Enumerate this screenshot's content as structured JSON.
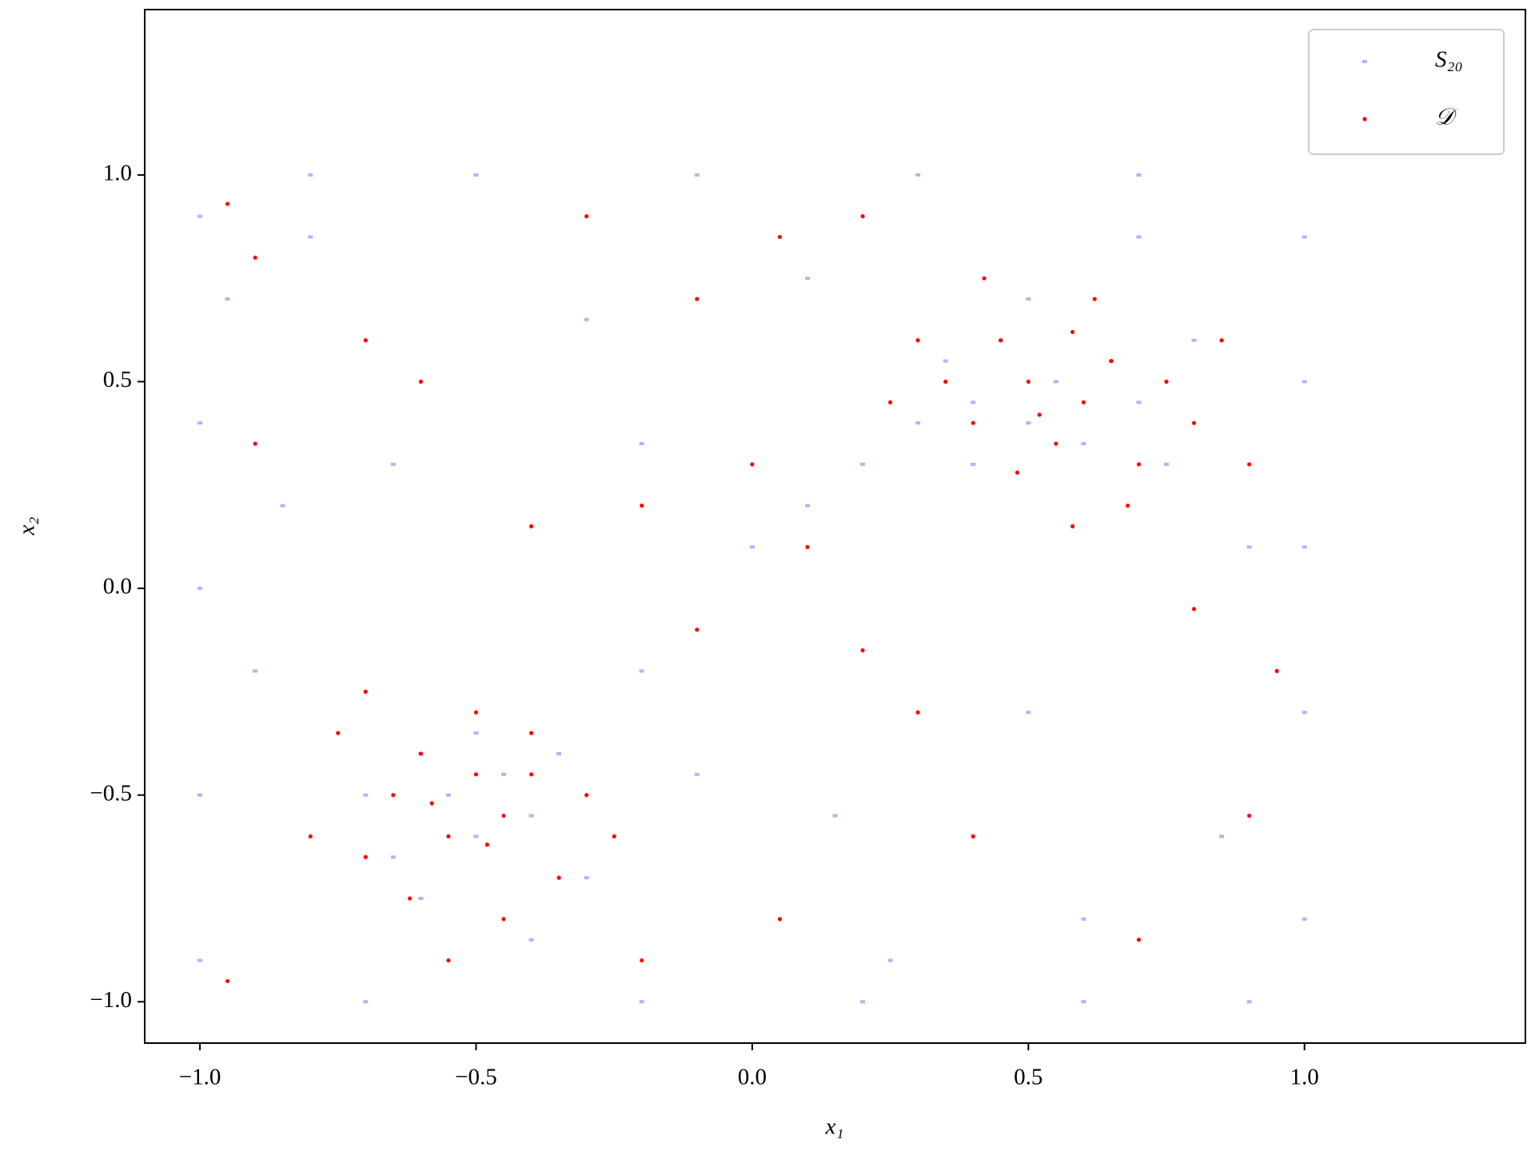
{
  "chart_data": {
    "type": "scatter",
    "xlabel": "x₁",
    "ylabel": "x₂",
    "xlim": [
      -1.1,
      1.4
    ],
    "ylim": [
      -1.1,
      1.4
    ],
    "xticks": [
      {
        "value": -1.0,
        "label": "−1.0"
      },
      {
        "value": -0.5,
        "label": "−0.5"
      },
      {
        "value": 0.0,
        "label": "0.0"
      },
      {
        "value": 0.5,
        "label": "0.5"
      },
      {
        "value": 1.0,
        "label": "1.0"
      }
    ],
    "yticks": [
      {
        "value": -1.0,
        "label": "−1.0"
      },
      {
        "value": -0.5,
        "label": "−0.5"
      },
      {
        "value": 0.0,
        "label": "0.0"
      },
      {
        "value": 0.5,
        "label": "0.5"
      },
      {
        "value": 1.0,
        "label": "1.0"
      }
    ],
    "legend": "upper right",
    "series": [
      {
        "name": "S₂₀",
        "color": "#0000ff",
        "x": [
          -1,
          -1,
          -1,
          -1,
          -1,
          1,
          1,
          1,
          1,
          1,
          -0.8,
          -0.5,
          -0.1,
          0.3,
          0.7,
          -0.7,
          -0.2,
          0.2,
          0.6,
          0.9,
          -0.95,
          -0.85,
          -0.6,
          -0.55,
          -0.5,
          -0.45,
          -0.4,
          -0.65,
          -0.35,
          -0.3,
          -0.5,
          -0.6,
          -0.7,
          -0.4,
          -0.2,
          0.0,
          0.1,
          0.2,
          0.35,
          0.4,
          0.45,
          0.5,
          0.55,
          0.6,
          0.65,
          0.7,
          0.75,
          0.5,
          0.4,
          0.8,
          0.3,
          -0.8,
          -0.3,
          0.1,
          0.5,
          0.85,
          -0.9,
          -0.2,
          0.15,
          0.6,
          0.9,
          -0.65,
          -0.1,
          0.25,
          0.7
        ],
        "y": [
          -0.9,
          -0.5,
          0.0,
          0.4,
          0.9,
          -0.8,
          -0.3,
          0.1,
          0.5,
          0.85,
          1,
          1,
          1,
          1,
          1,
          -1,
          -1,
          -1,
          -1,
          -1,
          0.7,
          0.2,
          -0.4,
          -0.5,
          -0.6,
          -0.45,
          -0.55,
          -0.65,
          -0.4,
          -0.7,
          -0.35,
          -0.75,
          -0.5,
          -0.85,
          -0.2,
          0.1,
          0.2,
          0.3,
          0.55,
          0.45,
          0.6,
          0.4,
          0.5,
          0.35,
          0.55,
          0.45,
          0.3,
          0.7,
          0.3,
          0.6,
          0.4,
          0.85,
          0.65,
          0.75,
          -0.3,
          -0.6,
          -0.2,
          0.35,
          -0.55,
          -0.8,
          0.1,
          0.3,
          -0.45,
          -0.9,
          0.85
        ]
      },
      {
        "name": "𝒟",
        "color": "#ff0000",
        "x": [
          -0.6,
          -0.5,
          -0.45,
          -0.55,
          -0.65,
          -0.4,
          -0.7,
          -0.35,
          -0.5,
          -0.62,
          -0.45,
          -0.3,
          -0.75,
          -0.58,
          -0.48,
          -0.4,
          -0.8,
          -0.25,
          -0.55,
          -0.7,
          0.5,
          0.6,
          0.55,
          0.45,
          0.65,
          0.4,
          0.7,
          0.35,
          0.58,
          0.75,
          0.48,
          0.62,
          0.3,
          0.8,
          0.52,
          0.68,
          0.42,
          0.85,
          0.58,
          0.9,
          -0.95,
          -0.9,
          -0.7,
          -0.3,
          -0.1,
          0.05,
          0.2,
          -0.4,
          -0.2,
          0.0,
          0.1,
          -0.1,
          0.2,
          0.3,
          0.05,
          0.4,
          0.7,
          0.9,
          0.95,
          -0.95,
          -0.9,
          -0.2,
          0.8,
          0.25,
          -0.6
        ],
        "y": [
          -0.4,
          -0.45,
          -0.55,
          -0.6,
          -0.5,
          -0.35,
          -0.65,
          -0.7,
          -0.3,
          -0.75,
          -0.8,
          -0.5,
          -0.35,
          -0.52,
          -0.62,
          -0.45,
          -0.6,
          -0.6,
          -0.9,
          -0.25,
          0.5,
          0.45,
          0.35,
          0.6,
          0.55,
          0.4,
          0.3,
          0.5,
          0.62,
          0.5,
          0.28,
          0.7,
          0.6,
          0.4,
          0.42,
          0.2,
          0.75,
          0.6,
          0.15,
          0.3,
          0.93,
          0.8,
          0.6,
          0.9,
          0.7,
          0.85,
          0.9,
          0.15,
          0.2,
          0.3,
          0.1,
          -0.1,
          -0.15,
          -0.3,
          -0.8,
          -0.6,
          -0.85,
          -0.55,
          -0.2,
          -0.95,
          0.35,
          -0.9,
          -0.05,
          0.45,
          0.5
        ]
      }
    ]
  }
}
